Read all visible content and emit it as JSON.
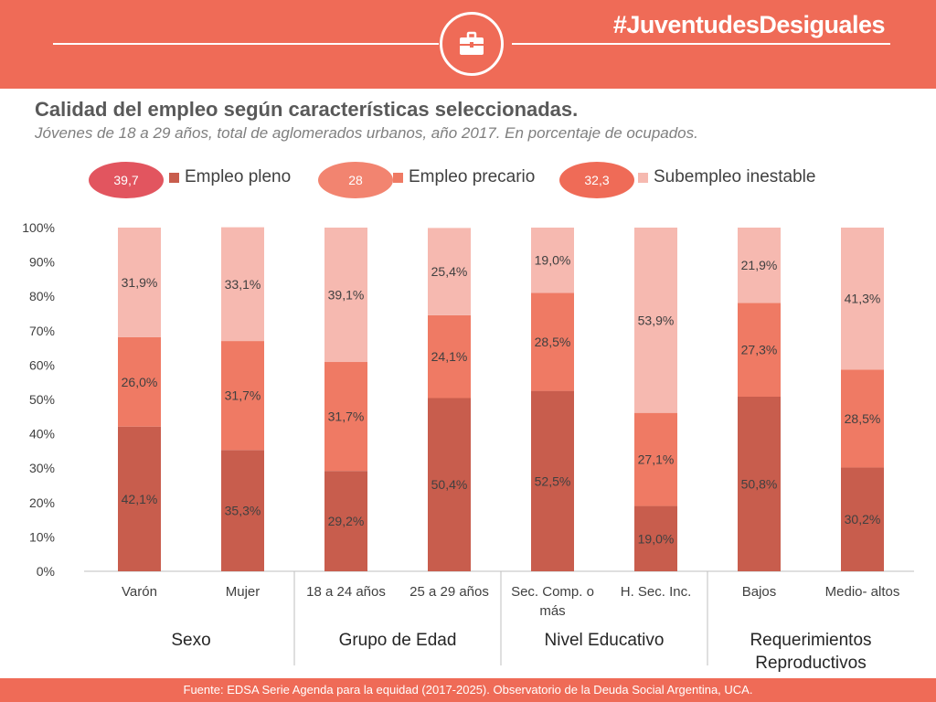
{
  "header": {
    "hashtag": "#JuventudesDesiguales",
    "icon": "briefcase-icon",
    "background_color": "#ef6b57"
  },
  "title": "Calidad del empleo según características seleccionadas.",
  "subtitle": "Jóvenes de 18 a 29 años, total de aglomerados urbanos, año 2017. En porcentaje de ocupados.",
  "legend": {
    "items": [
      {
        "value": "39,7",
        "label": "Empleo pleno",
        "pill_color": "#e2555f",
        "swatch_color": "#c85d4d"
      },
      {
        "value": "28",
        "label": "Empleo precario",
        "pill_color": "#f28470",
        "swatch_color": "#ef7a64"
      },
      {
        "value": "32,3",
        "label": "Subempleo inestable",
        "pill_color": "#ef6b57",
        "swatch_color": "#f6b9b0"
      }
    ]
  },
  "chart_data": {
    "type": "bar",
    "stacked": true,
    "categories": [
      "Varón",
      "Mujer",
      "18 a 24 años",
      "25 a 29 años",
      "Sec. Comp. o más",
      "H. Sec. Inc.",
      "Bajos",
      "Medio- altos"
    ],
    "series": [
      {
        "name": "Empleo pleno",
        "values": [
          42.1,
          35.3,
          29.2,
          50.4,
          52.5,
          19.0,
          50.8,
          30.2
        ],
        "labels": [
          "42,1%",
          "35,3%",
          "29,2%",
          "50,4%",
          "52,5%",
          "19,0%",
          "50,8%",
          "30,2%"
        ],
        "color": "#c85d4d"
      },
      {
        "name": "Empleo precario",
        "values": [
          26.0,
          31.7,
          31.7,
          24.1,
          28.5,
          27.1,
          27.3,
          28.5
        ],
        "labels": [
          "26,0%",
          "31,7%",
          "31,7%",
          "24,1%",
          "28,5%",
          "27,1%",
          "27,3%",
          "28,5%"
        ],
        "color": "#ef7a64"
      },
      {
        "name": "Subempleo inestable",
        "values": [
          31.9,
          33.1,
          39.1,
          25.4,
          19.0,
          53.9,
          21.9,
          41.3
        ],
        "labels": [
          "31,9%",
          "33,1%",
          "39,1%",
          "25,4%",
          "19,0%",
          "53,9%",
          "21,9%",
          "41,3%"
        ],
        "color": "#f6b9b0"
      }
    ],
    "ylim": [
      0,
      100
    ],
    "yticks": [
      "0%",
      "10%",
      "20%",
      "30%",
      "40%",
      "50%",
      "60%",
      "70%",
      "80%",
      "90%",
      "100%"
    ],
    "groups": [
      {
        "label": "Sexo",
        "categories": [
          0,
          1
        ]
      },
      {
        "label": "Grupo de Edad",
        "categories": [
          2,
          3
        ]
      },
      {
        "label": "Nivel Educativo",
        "categories": [
          4,
          5
        ]
      },
      {
        "label": "Requerimientos Reproductivos",
        "categories": [
          6,
          7
        ]
      }
    ],
    "grid": false,
    "legend_position": "top"
  },
  "footer": {
    "source": "Fuente: EDSA Serie Agenda para la equidad (2017-2025). Observatorio de la Deuda Social Argentina, UCA."
  }
}
